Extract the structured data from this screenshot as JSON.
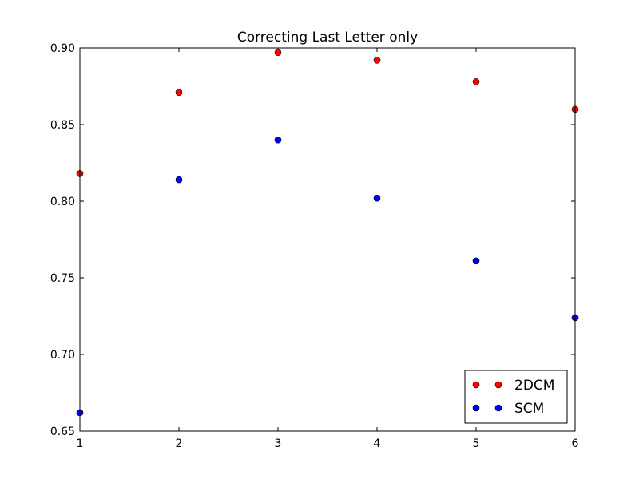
{
  "chart_data": {
    "type": "scatter",
    "title": "Correcting Last Letter only",
    "xlabel": "",
    "ylabel": "",
    "xlim": [
      1,
      6
    ],
    "ylim": [
      0.65,
      0.9
    ],
    "xticks": [
      1,
      2,
      3,
      4,
      5,
      6
    ],
    "xtick_labels": [
      "1",
      "2",
      "3",
      "4",
      "5",
      "6"
    ],
    "yticks": [
      0.65,
      0.7,
      0.75,
      0.8,
      0.85,
      0.9
    ],
    "ytick_labels": [
      "0.65",
      "0.70",
      "0.75",
      "0.80",
      "0.85",
      "0.90"
    ],
    "grid": false,
    "legend_position": "lower-right",
    "series": [
      {
        "name": "2DCM",
        "color": "#ff0000",
        "x": [
          1,
          2,
          3,
          4,
          5,
          6
        ],
        "y": [
          0.818,
          0.871,
          0.897,
          0.892,
          0.878,
          0.86
        ]
      },
      {
        "name": "SCM",
        "color": "#0000ff",
        "x": [
          1,
          2,
          3,
          4,
          5,
          6
        ],
        "y": [
          0.662,
          0.814,
          0.84,
          0.802,
          0.761,
          0.724
        ]
      }
    ]
  }
}
